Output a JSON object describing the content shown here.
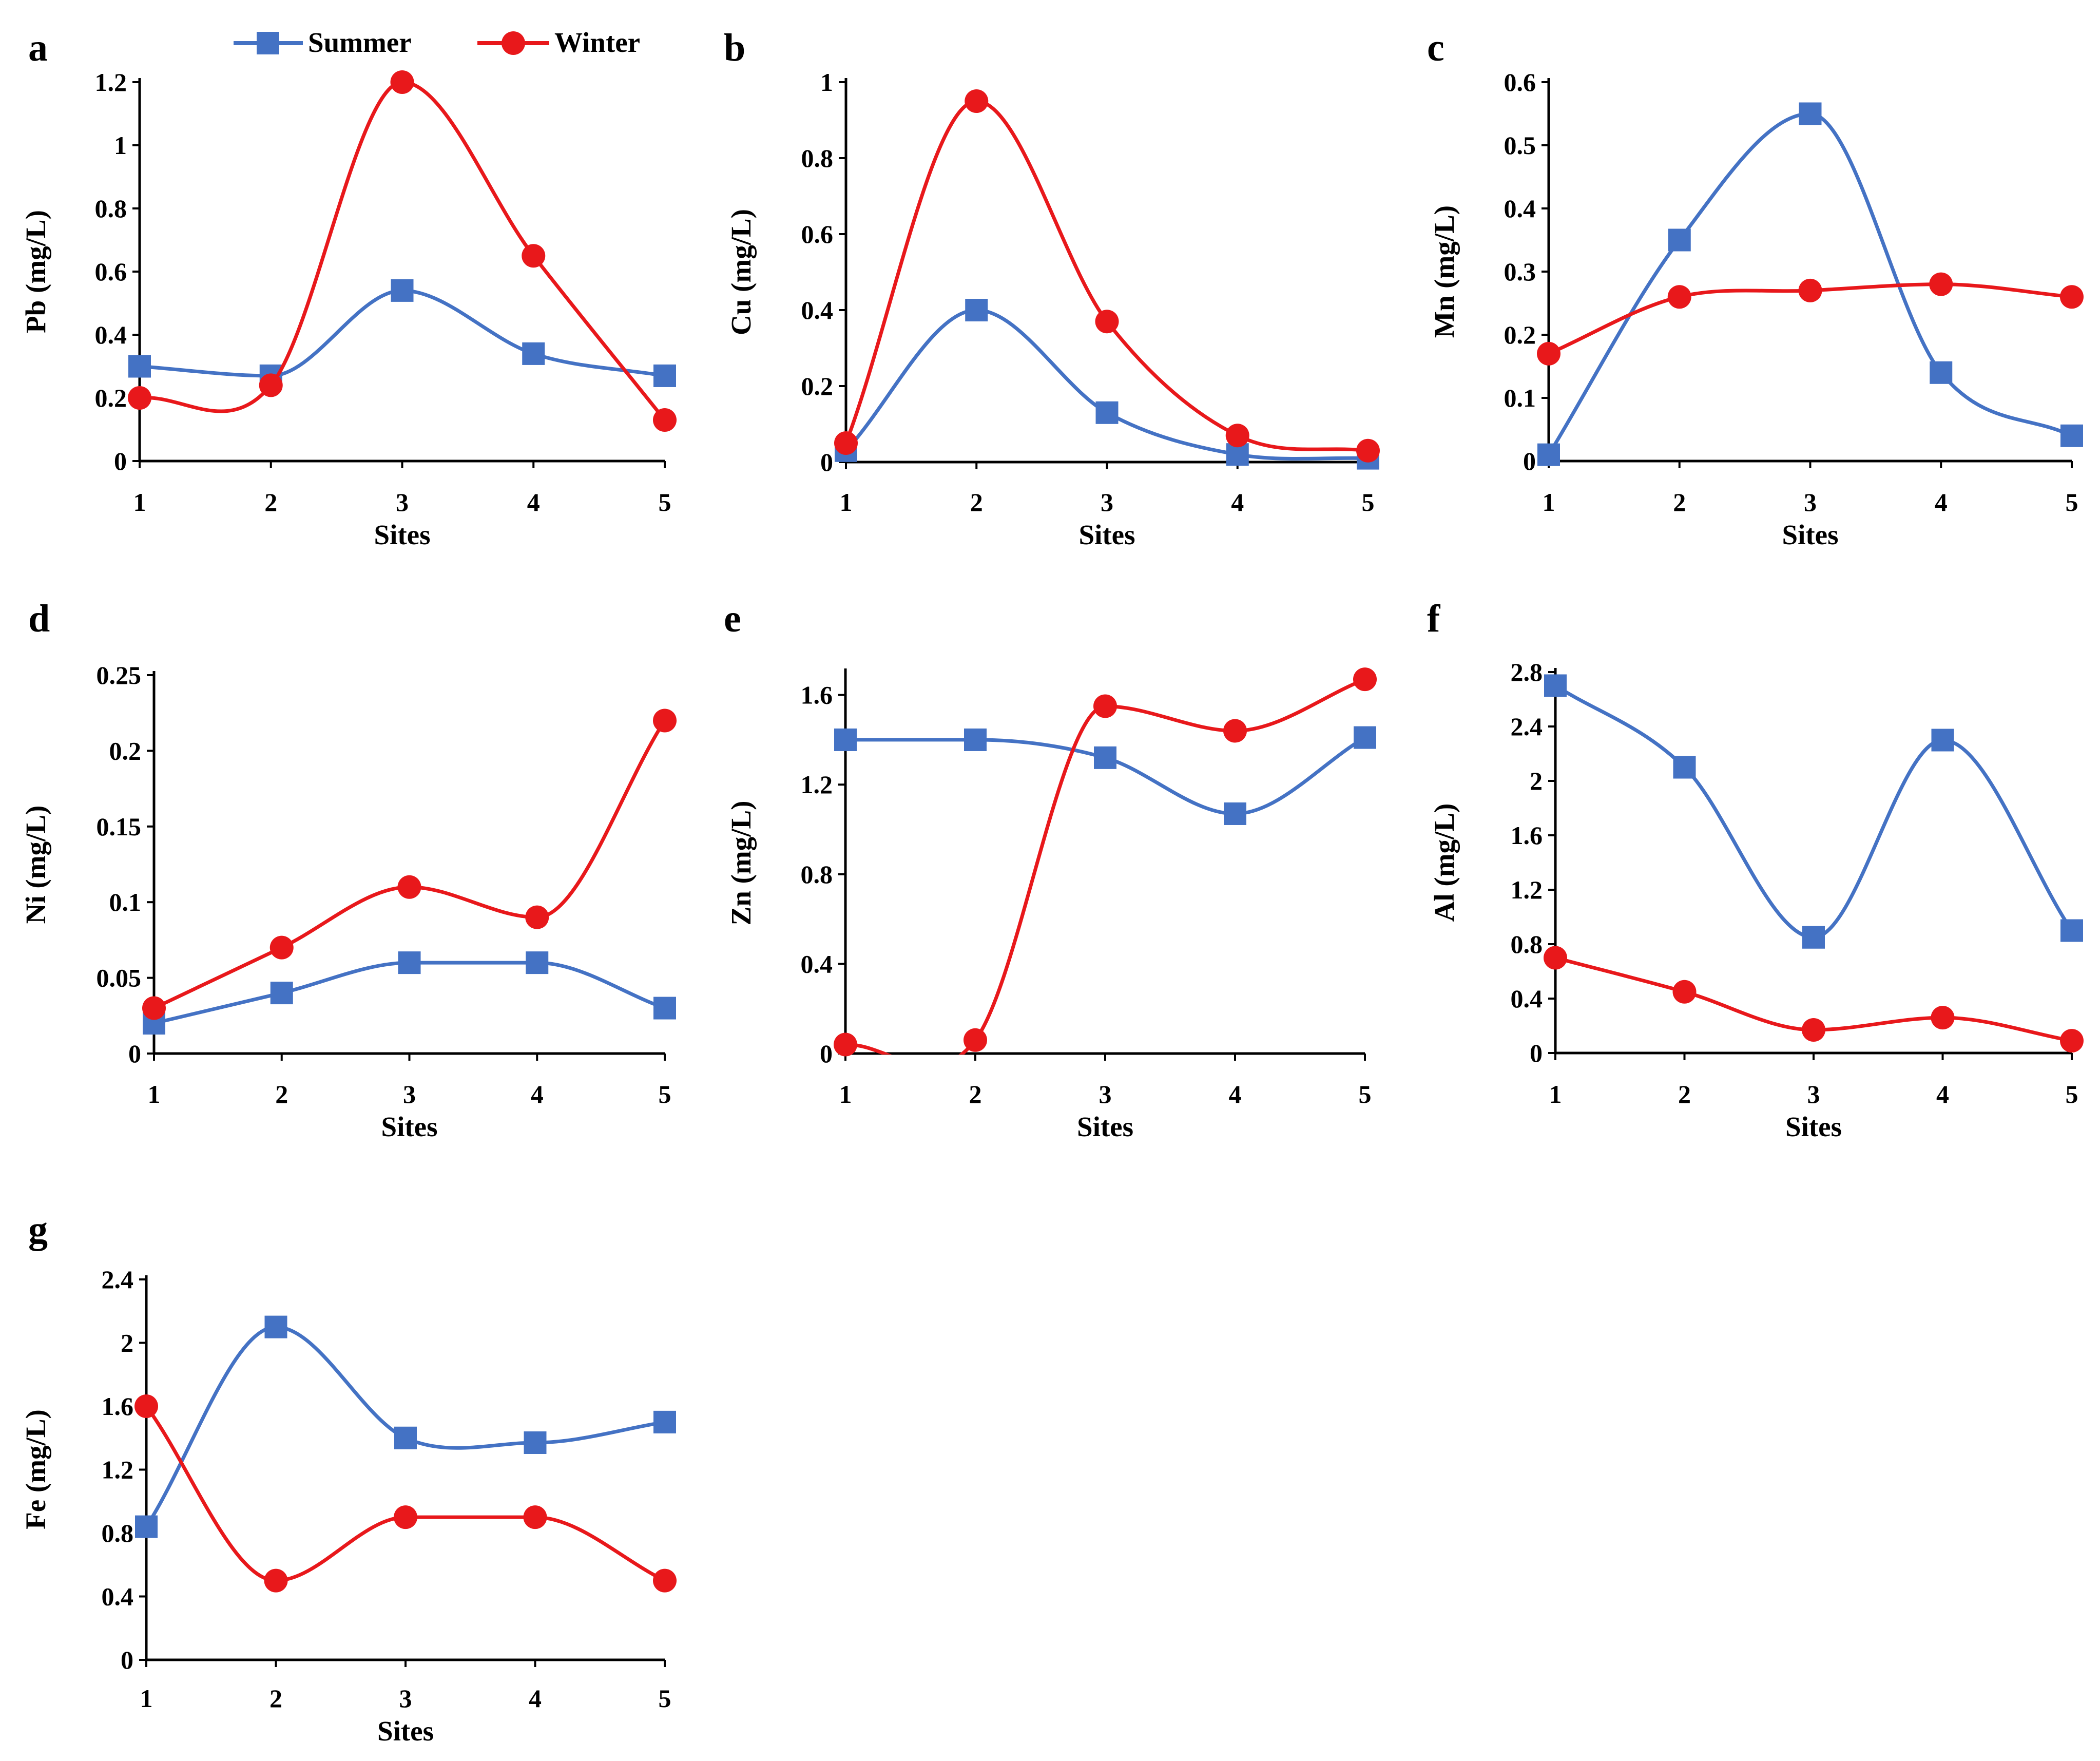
{
  "legend": {
    "summer_label": "Summer",
    "winter_label": "Winter"
  },
  "colors": {
    "summer": "#4472C4",
    "winter": "#E8181B"
  },
  "chart_data": [
    {
      "panel": "a",
      "type": "line",
      "xlabel": "Sites",
      "ylabel": "Pb (mg/L)",
      "categories": [
        "1",
        "2",
        "3",
        "4",
        "5"
      ],
      "ylim": [
        0,
        1.2
      ],
      "yticks": [
        "0",
        "0.2",
        "0.4",
        "0.6",
        "0.8",
        "1",
        "1.2"
      ],
      "series": [
        {
          "name": "Summer",
          "marker": "square",
          "values": [
            0.3,
            0.27,
            0.54,
            0.34,
            0.27
          ]
        },
        {
          "name": "Winter",
          "marker": "circle",
          "values": [
            0.2,
            0.24,
            1.2,
            0.65,
            0.13
          ]
        }
      ]
    },
    {
      "panel": "b",
      "type": "line",
      "xlabel": "Sites",
      "ylabel": "Cu (mg/L)",
      "categories": [
        "1",
        "2",
        "3",
        "4",
        "5"
      ],
      "ylim": [
        0,
        1
      ],
      "yticks": [
        "0",
        "0.2",
        "0.4",
        "0.6",
        "0.8",
        "1"
      ],
      "series": [
        {
          "name": "Summer",
          "marker": "square",
          "values": [
            0.03,
            0.4,
            0.13,
            0.02,
            0.01
          ]
        },
        {
          "name": "Winter",
          "marker": "circle",
          "values": [
            0.05,
            0.95,
            0.37,
            0.07,
            0.03
          ]
        }
      ]
    },
    {
      "panel": "c",
      "type": "line",
      "xlabel": "Sites",
      "ylabel": "Mn (mg/L)",
      "categories": [
        "1",
        "2",
        "3",
        "4",
        "5"
      ],
      "ylim": [
        0,
        0.6
      ],
      "yticks": [
        "0",
        "0.1",
        "0.2",
        "0.3",
        "0.4",
        "0.5",
        "0.6"
      ],
      "series": [
        {
          "name": "Summer",
          "marker": "square",
          "values": [
            0.01,
            0.35,
            0.55,
            0.14,
            0.04
          ]
        },
        {
          "name": "Winter",
          "marker": "circle",
          "values": [
            0.17,
            0.26,
            0.27,
            0.28,
            0.26
          ]
        }
      ]
    },
    {
      "panel": "d",
      "type": "line",
      "xlabel": "Sites",
      "ylabel": "Ni (mg/L)",
      "categories": [
        "1",
        "2",
        "3",
        "4",
        "5"
      ],
      "ylim": [
        0,
        0.25
      ],
      "yticks": [
        "0",
        "0.05",
        "0.1",
        "0.15",
        "0.2",
        "0.25"
      ],
      "series": [
        {
          "name": "Summer",
          "marker": "square",
          "values": [
            0.02,
            0.04,
            0.06,
            0.06,
            0.03
          ]
        },
        {
          "name": "Winter",
          "marker": "circle",
          "values": [
            0.03,
            0.07,
            0.11,
            0.09,
            0.22
          ]
        }
      ]
    },
    {
      "panel": "e",
      "type": "line",
      "xlabel": "Sites",
      "ylabel": "Zn (mg/L)",
      "categories": [
        "1",
        "2",
        "3",
        "4",
        "5"
      ],
      "ylim": [
        0,
        1.7
      ],
      "yticks": [
        "0",
        "0.4",
        "0.8",
        "1.2",
        "1.6"
      ],
      "series": [
        {
          "name": "Summer",
          "marker": "square",
          "values": [
            1.4,
            1.4,
            1.32,
            1.07,
            1.41
          ]
        },
        {
          "name": "Winter",
          "marker": "circle",
          "values": [
            0.04,
            0.06,
            1.55,
            1.44,
            1.67
          ]
        }
      ]
    },
    {
      "panel": "f",
      "type": "line",
      "xlabel": "Sites",
      "ylabel": "Al (mg/L)",
      "categories": [
        "1",
        "2",
        "3",
        "4",
        "5"
      ],
      "ylim": [
        0,
        2.8
      ],
      "yticks": [
        "0",
        "0.4",
        "0.8",
        "1.2",
        "1.6",
        "2",
        "2.4",
        "2.8"
      ],
      "series": [
        {
          "name": "Summer",
          "marker": "square",
          "values": [
            2.7,
            2.1,
            0.85,
            2.3,
            0.9
          ]
        },
        {
          "name": "Winter",
          "marker": "circle",
          "values": [
            0.7,
            0.45,
            0.17,
            0.26,
            0.09
          ]
        }
      ]
    },
    {
      "panel": "g",
      "type": "line",
      "xlabel": "Sites",
      "ylabel": "Fe (mg/L)",
      "categories": [
        "1",
        "2",
        "3",
        "4",
        "5"
      ],
      "ylim": [
        0,
        2.4
      ],
      "yticks": [
        "0",
        "0.4",
        "0.8",
        "1.2",
        "1.6",
        "2",
        "2.4"
      ],
      "series": [
        {
          "name": "Summer",
          "marker": "square",
          "values": [
            0.84,
            2.1,
            1.4,
            1.37,
            1.5
          ]
        },
        {
          "name": "Winter",
          "marker": "circle",
          "values": [
            1.6,
            0.5,
            0.9,
            0.9,
            0.5
          ]
        }
      ]
    }
  ]
}
